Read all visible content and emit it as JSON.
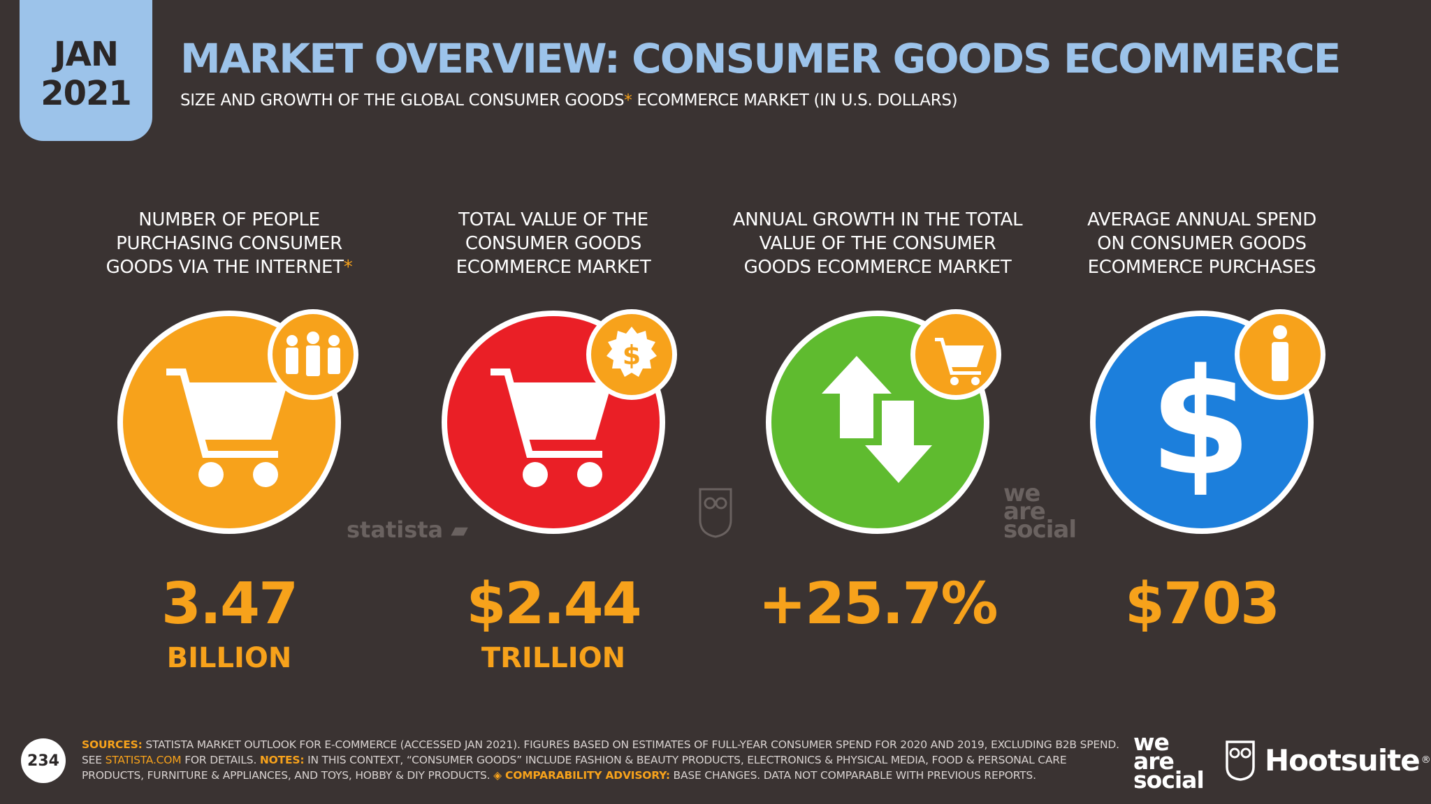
{
  "header": {
    "date_month": "JAN",
    "date_year": "2021",
    "title": "MARKET OVERVIEW: CONSUMER GOODS ECOMMERCE",
    "subtitle_before": "SIZE AND GROWTH OF THE GLOBAL CONSUMER GOODS",
    "subtitle_asterisk": "*",
    "subtitle_after": " ECOMMERCE MARKET (IN U.S. DOLLARS)"
  },
  "stats": [
    {
      "label_lines": [
        "NUMBER OF PEOPLE",
        "PURCHASING CONSUMER",
        "GOODS VIA THE INTERNET"
      ],
      "label_asterisk": "*",
      "value": "3.47",
      "unit": "BILLION",
      "circle_color": "#f7a21b",
      "main_icon": "shopping-cart-icon",
      "badge_icon": "people-icon"
    },
    {
      "label_lines": [
        "TOTAL VALUE OF THE",
        "CONSUMER GOODS",
        "ECOMMERCE MARKET"
      ],
      "label_asterisk": "",
      "value": "$2.44",
      "unit": "TRILLION",
      "circle_color": "#ea1f26",
      "main_icon": "shopping-cart-icon",
      "badge_icon": "dollar-badge-icon"
    },
    {
      "label_lines": [
        "ANNUAL GROWTH IN THE TOTAL",
        "VALUE OF THE CONSUMER",
        "GOODS ECOMMERCE MARKET"
      ],
      "label_asterisk": "",
      "value": "+25.7%",
      "unit": "",
      "circle_color": "#5fbb2f",
      "main_icon": "up-down-arrows-icon",
      "badge_icon": "shopping-cart-icon"
    },
    {
      "label_lines": [
        "AVERAGE ANNUAL SPEND",
        "ON CONSUMER GOODS",
        "ECOMMERCE PURCHASES"
      ],
      "label_asterisk": "",
      "value": "$703",
      "unit": "",
      "circle_color": "#1c7fdc",
      "main_icon": "dollar-sign-icon",
      "badge_icon": "person-icon"
    }
  ],
  "watermarks": {
    "statista": "statista",
    "wearesocial": [
      "we",
      "are",
      "social"
    ]
  },
  "footer": {
    "page_number": "234",
    "sources_label": "SOURCES:",
    "sources_text_1": " STATISTA MARKET OUTLOOK FOR E-COMMERCE (ACCESSED JAN 2021). FIGURES BASED ON ESTIMATES OF FULL-YEAR CONSUMER SPEND FOR 2020 AND 2019, EXCLUDING B2B SPEND. SEE ",
    "sources_link": "STATISTA.COM",
    "sources_text_2": " FOR DETAILS. ",
    "notes_label": "NOTES:",
    "notes_text": " IN THIS CONTEXT, “CONSUMER GOODS” INCLUDE FASHION & BEAUTY PRODUCTS, ELECTRONICS & PHYSICAL MEDIA, FOOD & PERSONAL CARE PRODUCTS, FURNITURE & APPLIANCES, AND TOYS, HOBBY & DIY PRODUCTS. ",
    "advisory_label": "◈ COMPARABILITY ADVISORY:",
    "advisory_text": " BASE CHANGES. DATA NOT COMPARABLE WITH PREVIOUS REPORTS.",
    "logo_was": [
      "we",
      "are",
      "social"
    ],
    "logo_hootsuite": "Hootsuite",
    "logo_hootsuite_mark": "®"
  },
  "colors": {
    "background": "#3a3332",
    "accent_blue": "#9cc3ea",
    "accent_orange": "#f7a21b",
    "red": "#ea1f26",
    "green": "#5fbb2f",
    "blue": "#1c7fdc"
  }
}
